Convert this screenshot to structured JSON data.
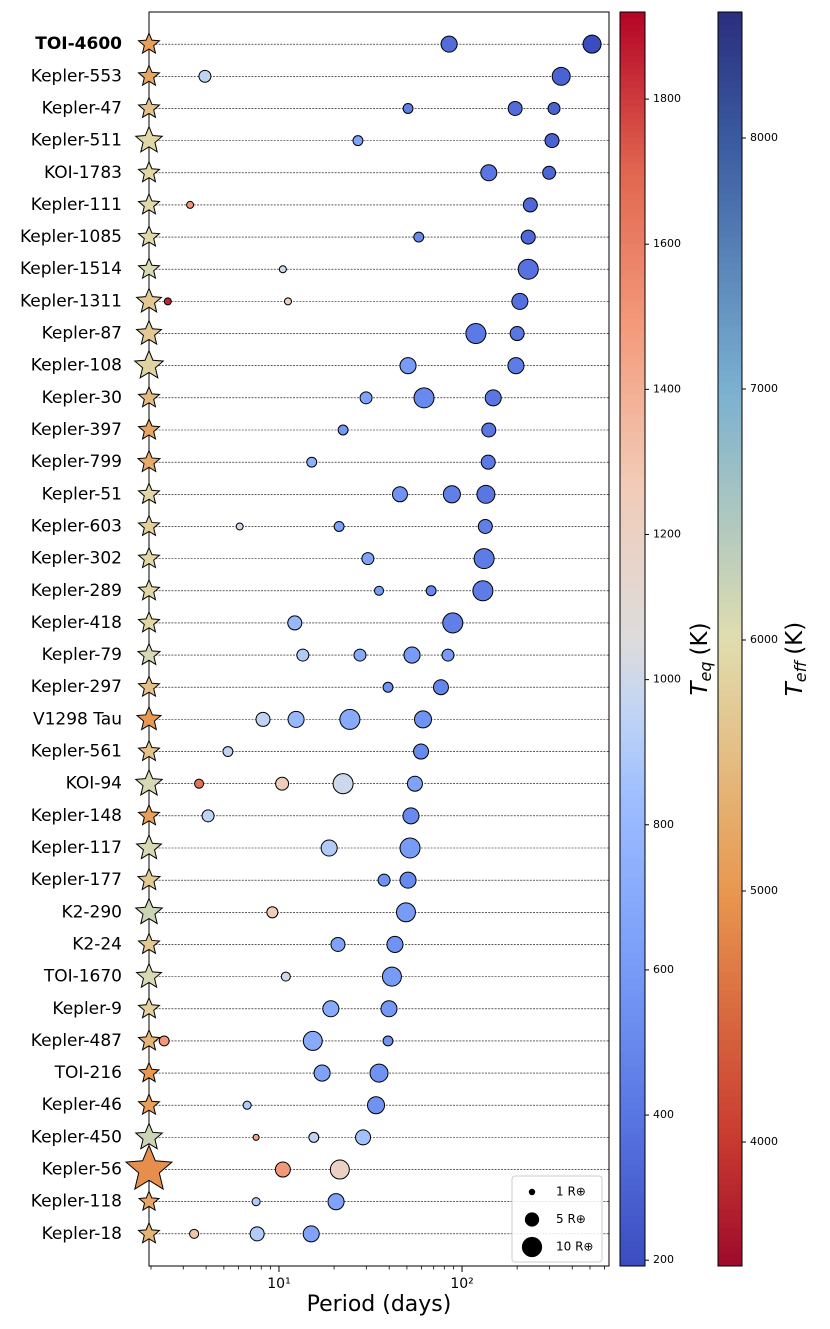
{
  "chart_data": {
    "type": "system_scatter",
    "xlabel": "Period (days)",
    "xscale": "log",
    "xlim": [
      1.95,
      635
    ],
    "xticks": [
      {
        "value": 10,
        "label": "10¹"
      },
      {
        "value": 100,
        "label": "10²"
      }
    ],
    "xminor_ticks": [
      2,
      3,
      4,
      5,
      6,
      7,
      8,
      9,
      20,
      30,
      40,
      50,
      60,
      70,
      80,
      90,
      200,
      300,
      400,
      500,
      600
    ],
    "teq_colorbar": {
      "label": {
        "symbol": "T",
        "subscript": "eq",
        "unit": "(K)"
      },
      "colormap": "coolwarm",
      "lim": [
        192,
        1920
      ],
      "ticks": [
        200,
        400,
        600,
        800,
        1000,
        1200,
        1400,
        1600,
        1800
      ]
    },
    "teff_colorbar": {
      "label": {
        "symbol": "T",
        "subscript": "eff",
        "unit": "(K)"
      },
      "colormap": "RdYlBu",
      "lim": [
        3506,
        8502
      ],
      "ticks": [
        4000,
        5000,
        6000,
        7000,
        8000
      ]
    },
    "legend": {
      "corner": "lower right",
      "items": [
        {
          "value": 1,
          "label": "1 R⊕"
        },
        {
          "value": 5,
          "label": "5 R⊕"
        },
        {
          "value": 10,
          "label": "10 R⊕"
        }
      ]
    },
    "systems": [
      {
        "name": "TOI-4600",
        "bold": true,
        "teff": 5100,
        "star_radius": 1.0,
        "planets": [
          {
            "period": 85,
            "radius": 6.3,
            "teq": 350
          },
          {
            "period": 513,
            "radius": 7.9,
            "teq": 190
          }
        ]
      },
      {
        "name": "Kepler-553",
        "teff": 5200,
        "star_radius": 1.0,
        "planets": [
          {
            "period": 3.94,
            "radius": 3.5,
            "teq": 950
          },
          {
            "period": 348,
            "radius": 7.9,
            "teq": 300
          }
        ]
      },
      {
        "name": "Kepler-47",
        "teff": 5600,
        "star_radius": 1.0,
        "planets": [
          {
            "period": 50.7,
            "radius": 2.4,
            "teq": 450
          },
          {
            "period": 195,
            "radius": 4.8,
            "teq": 350
          },
          {
            "period": 318,
            "radius": 3.5,
            "teq": 300
          }
        ]
      },
      {
        "name": "Kepler-511",
        "teff": 5900,
        "star_radius": 1.6,
        "planets": [
          {
            "period": 27,
            "radius": 2.4,
            "teq": 650
          },
          {
            "period": 310,
            "radius": 4.8,
            "teq": 300
          }
        ]
      },
      {
        "name": "KOI-1783",
        "teff": 5900,
        "star_radius": 1.0,
        "planets": [
          {
            "period": 140,
            "radius": 6.3,
            "teq": 400
          },
          {
            "period": 299,
            "radius": 4.1,
            "teq": 320
          }
        ]
      },
      {
        "name": "Kepler-111",
        "teff": 5950,
        "star_radius": 1.0,
        "planets": [
          {
            "period": 3.27,
            "radius": 1.2,
            "teq": 1500
          },
          {
            "period": 236,
            "radius": 4.8,
            "teq": 330
          }
        ]
      },
      {
        "name": "Kepler-1085",
        "teff": 5950,
        "star_radius": 1.0,
        "planets": [
          {
            "period": 58,
            "radius": 2.4,
            "teq": 500
          },
          {
            "period": 230,
            "radius": 4.8,
            "teq": 330
          }
        ]
      },
      {
        "name": "Kepler-1514",
        "teff": 6100,
        "star_radius": 1.0,
        "planets": [
          {
            "period": 10.5,
            "radius": 1.2,
            "teq": 1000
          },
          {
            "period": 230,
            "radius": 9.8,
            "teq": 380
          }
        ]
      },
      {
        "name": "Kepler-1311",
        "teff": 5700,
        "star_radius": 1.4,
        "planets": [
          {
            "period": 2.47,
            "radius": 1.2,
            "teq": 1850
          },
          {
            "period": 11.2,
            "radius": 1.2,
            "teq": 1200
          },
          {
            "period": 207,
            "radius": 6.3,
            "teq": 370
          }
        ]
      },
      {
        "name": "Kepler-87",
        "teff": 5700,
        "star_radius": 1.4,
        "planets": [
          {
            "period": 119,
            "radius": 9.8,
            "teq": 420
          },
          {
            "period": 200,
            "radius": 4.8,
            "teq": 400
          }
        ]
      },
      {
        "name": "Kepler-108",
        "teff": 5850,
        "star_radius": 1.85,
        "planets": [
          {
            "period": 50.7,
            "radius": 6.3,
            "teq": 600
          },
          {
            "period": 197,
            "radius": 6.3,
            "teq": 430
          }
        ]
      },
      {
        "name": "Kepler-30",
        "teff": 5500,
        "star_radius": 1.0,
        "planets": [
          {
            "period": 29.9,
            "radius": 3.5,
            "teq": 650
          },
          {
            "period": 62,
            "radius": 9.8,
            "teq": 500
          },
          {
            "period": 148,
            "radius": 6.3,
            "teq": 400
          }
        ]
      },
      {
        "name": "Kepler-397",
        "teff": 5200,
        "star_radius": 1.0,
        "planets": [
          {
            "period": 22.4,
            "radius": 2.4,
            "teq": 580
          },
          {
            "period": 140,
            "radius": 4.8,
            "teq": 400
          }
        ]
      },
      {
        "name": "Kepler-799",
        "teff": 5300,
        "star_radius": 1.1,
        "planets": [
          {
            "period": 15.1,
            "radius": 2.4,
            "teq": 750
          },
          {
            "period": 139,
            "radius": 4.8,
            "teq": 420
          }
        ]
      },
      {
        "name": "Kepler-51",
        "teff": 5900,
        "star_radius": 1.0,
        "planets": [
          {
            "period": 45.8,
            "radius": 5.5,
            "teq": 550
          },
          {
            "period": 88,
            "radius": 7.1,
            "teq": 450
          },
          {
            "period": 135,
            "radius": 7.9,
            "teq": 400
          }
        ]
      },
      {
        "name": "Kepler-603",
        "teff": 5800,
        "star_radius": 1.0,
        "planets": [
          {
            "period": 6.1,
            "radius": 1.2,
            "teq": 1000
          },
          {
            "period": 21.3,
            "radius": 2.4,
            "teq": 650
          },
          {
            "period": 134,
            "radius": 4.8,
            "teq": 450
          }
        ]
      },
      {
        "name": "Kepler-302",
        "teff": 5900,
        "star_radius": 1.0,
        "planets": [
          {
            "period": 30.6,
            "radius": 3.5,
            "teq": 650
          },
          {
            "period": 132,
            "radius": 9.8,
            "teq": 430
          }
        ]
      },
      {
        "name": "Kepler-289",
        "teff": 5900,
        "star_radius": 1.0,
        "planets": [
          {
            "period": 35.2,
            "radius": 2.0,
            "teq": 600
          },
          {
            "period": 67.8,
            "radius": 2.4,
            "teq": 500
          },
          {
            "period": 130,
            "radius": 9.8,
            "teq": 430
          }
        ]
      },
      {
        "name": "Kepler-418",
        "teff": 5900,
        "star_radius": 1.0,
        "planets": [
          {
            "period": 12.2,
            "radius": 4.8,
            "teq": 800
          },
          {
            "period": 89,
            "radius": 9.8,
            "teq": 450
          }
        ]
      },
      {
        "name": "Kepler-79",
        "teff": 6100,
        "star_radius": 1.1,
        "planets": [
          {
            "period": 13.5,
            "radius": 3.5,
            "teq": 900
          },
          {
            "period": 27.7,
            "radius": 3.5,
            "teq": 700
          },
          {
            "period": 53.3,
            "radius": 6.3,
            "teq": 600
          },
          {
            "period": 83.8,
            "radius": 3.5,
            "teq": 600
          }
        ]
      },
      {
        "name": "Kepler-297",
        "teff": 5600,
        "star_radius": 1.0,
        "planets": [
          {
            "period": 39.4,
            "radius": 2.4,
            "teq": 550
          },
          {
            "period": 76.7,
            "radius": 5.5,
            "teq": 480
          }
        ]
      },
      {
        "name": "V1298 Tau",
        "teff": 5000,
        "star_radius": 1.3,
        "planets": [
          {
            "period": 8.18,
            "radius": 4.8,
            "teq": 950
          },
          {
            "period": 12.4,
            "radius": 6.3,
            "teq": 800
          },
          {
            "period": 24.4,
            "radius": 9.8,
            "teq": 700
          },
          {
            "period": 61.2,
            "radius": 7.1,
            "teq": 550
          }
        ]
      },
      {
        "name": "Kepler-561",
        "teff": 5600,
        "star_radius": 1.0,
        "planets": [
          {
            "period": 5.26,
            "radius": 2.4,
            "teq": 950
          },
          {
            "period": 59.7,
            "radius": 5.5,
            "teq": 500
          }
        ]
      },
      {
        "name": "KOI-94",
        "teff": 6100,
        "star_radius": 1.6,
        "planets": [
          {
            "period": 3.66,
            "radius": 2.0,
            "teq": 1650
          },
          {
            "period": 10.4,
            "radius": 4.1,
            "teq": 1250
          },
          {
            "period": 22.4,
            "radius": 9.8,
            "teq": 1000
          },
          {
            "period": 55.3,
            "radius": 5.5,
            "teq": 650
          }
        ]
      },
      {
        "name": "Kepler-148",
        "teff": 5100,
        "star_radius": 1.0,
        "planets": [
          {
            "period": 4.1,
            "radius": 3.5,
            "teq": 950
          },
          {
            "period": 52.6,
            "radius": 6.3,
            "teq": 500
          }
        ]
      },
      {
        "name": "Kepler-117",
        "teff": 6100,
        "star_radius": 1.4,
        "planets": [
          {
            "period": 18.8,
            "radius": 6.3,
            "teq": 900
          },
          {
            "period": 52,
            "radius": 9.8,
            "teq": 600
          }
        ]
      },
      {
        "name": "Kepler-177",
        "teff": 5700,
        "star_radius": 1.1,
        "planets": [
          {
            "period": 37.5,
            "radius": 3.5,
            "teq": 550
          },
          {
            "period": 50.7,
            "radius": 6.3,
            "teq": 500
          }
        ]
      },
      {
        "name": "K2-290",
        "teff": 6200,
        "star_radius": 1.6,
        "planets": [
          {
            "period": 9.2,
            "radius": 3.0,
            "teq": 1250
          },
          {
            "period": 49.4,
            "radius": 8.8,
            "teq": 600
          }
        ]
      },
      {
        "name": "K2-24",
        "teff": 5700,
        "star_radius": 1.0,
        "planets": [
          {
            "period": 21,
            "radius": 4.8,
            "teq": 650
          },
          {
            "period": 43,
            "radius": 6.3,
            "teq": 550
          }
        ]
      },
      {
        "name": "TOI-1670",
        "teff": 6100,
        "star_radius": 1.4,
        "planets": [
          {
            "period": 10.9,
            "radius": 2.0,
            "teq": 1000
          },
          {
            "period": 41.4,
            "radius": 8.8,
            "teq": 600
          }
        ]
      },
      {
        "name": "Kepler-9",
        "teff": 5800,
        "star_radius": 1.0,
        "planets": [
          {
            "period": 19.2,
            "radius": 6.3,
            "teq": 700
          },
          {
            "period": 39.9,
            "radius": 6.3,
            "teq": 580
          }
        ]
      },
      {
        "name": "Kepler-487",
        "teff": 5400,
        "star_radius": 1.0,
        "planets": [
          {
            "period": 2.36,
            "radius": 2.4,
            "teq": 1500
          },
          {
            "period": 15.3,
            "radius": 8.8,
            "teq": 700
          },
          {
            "period": 39.4,
            "radius": 2.4,
            "teq": 550
          }
        ]
      },
      {
        "name": "TOI-216",
        "teff": 5000,
        "star_radius": 0.9,
        "planets": [
          {
            "period": 17.2,
            "radius": 6.3,
            "teq": 650
          },
          {
            "period": 35.2,
            "radius": 7.9,
            "teq": 550
          }
        ]
      },
      {
        "name": "Kepler-46",
        "teff": 5100,
        "star_radius": 1.0,
        "planets": [
          {
            "period": 6.7,
            "radius": 1.6,
            "teq": 900
          },
          {
            "period": 33.9,
            "radius": 7.1,
            "teq": 550
          }
        ]
      },
      {
        "name": "Kepler-450",
        "teff": 6200,
        "star_radius": 1.6,
        "planets": [
          {
            "period": 7.5,
            "radius": 0.9,
            "teq": 1450
          },
          {
            "period": 15.5,
            "radius": 2.4,
            "teq": 950
          },
          {
            "period": 28.8,
            "radius": 5.5,
            "teq": 850
          }
        ]
      },
      {
        "name": "Kepler-56",
        "teff": 4900,
        "star_radius": 4.8,
        "planets": [
          {
            "period": 10.5,
            "radius": 5.5,
            "teq": 1500
          },
          {
            "period": 21.5,
            "radius": 8.8,
            "teq": 1200
          }
        ]
      },
      {
        "name": "Kepler-118",
        "teff": 5200,
        "star_radius": 0.9,
        "planets": [
          {
            "period": 7.5,
            "radius": 1.6,
            "teq": 900
          },
          {
            "period": 20.5,
            "radius": 6.3,
            "teq": 650
          }
        ]
      },
      {
        "name": "Kepler-18",
        "teff": 5400,
        "star_radius": 1.0,
        "planets": [
          {
            "period": 3.44,
            "radius": 2.0,
            "teq": 1300
          },
          {
            "period": 7.6,
            "radius": 4.8,
            "teq": 900
          },
          {
            "period": 15,
            "radius": 6.3,
            "teq": 650
          }
        ]
      }
    ]
  }
}
